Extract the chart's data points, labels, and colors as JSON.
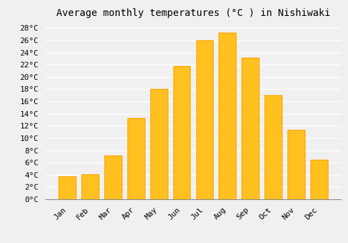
{
  "title": "Average monthly temperatures (°C ) in Nishiwaki",
  "months": [
    "Jan",
    "Feb",
    "Mar",
    "Apr",
    "May",
    "Jun",
    "Jul",
    "Aug",
    "Sep",
    "Oct",
    "Nov",
    "Dec"
  ],
  "temperatures": [
    3.7,
    4.1,
    7.2,
    13.3,
    18.0,
    21.8,
    26.0,
    27.2,
    23.2,
    17.0,
    11.4,
    6.5
  ],
  "bar_color_main": "#FFC020",
  "bar_color_edge": "#FFA500",
  "ylim": [
    0,
    29
  ],
  "ytick_values": [
    0,
    2,
    4,
    6,
    8,
    10,
    12,
    14,
    16,
    18,
    20,
    22,
    24,
    26,
    28
  ],
  "background_color": "#f0f0f0",
  "plot_bg_color": "#f0f0f0",
  "grid_color": "#ffffff",
  "title_fontsize": 10,
  "tick_fontsize": 8,
  "font_family": "monospace",
  "bar_width": 0.75
}
